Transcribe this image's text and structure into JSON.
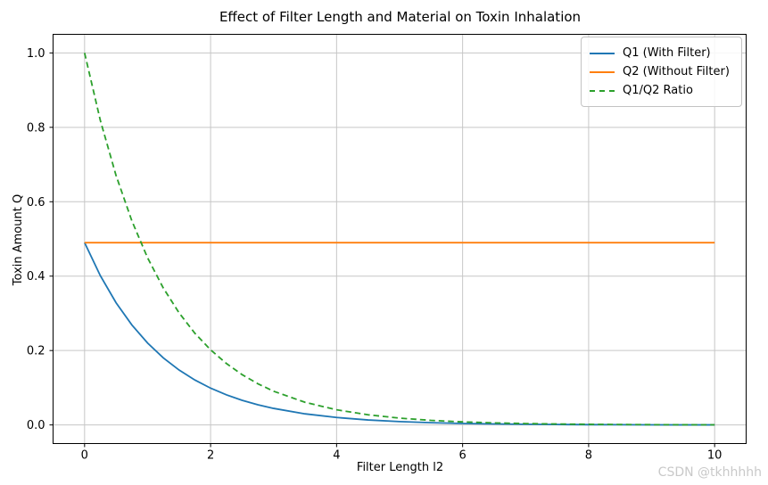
{
  "chart_data": {
    "type": "line",
    "title": "Effect of Filter Length and Material on Toxin Inhalation",
    "xlabel": "Filter Length l2",
    "ylabel": "Toxin Amount Q",
    "xlim": [
      -0.5,
      10.5
    ],
    "ylim": [
      -0.05,
      1.05
    ],
    "grid": true,
    "grid_color": "#c6c6c6",
    "legend_position": "upper right",
    "x_ticks": [
      0,
      2,
      4,
      6,
      8,
      10
    ],
    "x_tick_labels": [
      "0",
      "2",
      "4",
      "6",
      "8",
      "10"
    ],
    "y_ticks": [
      0.0,
      0.2,
      0.4,
      0.6,
      0.8,
      1.0
    ],
    "y_tick_labels": [
      "0.0",
      "0.2",
      "0.4",
      "0.6",
      "0.8",
      "1.0"
    ],
    "x": [
      0,
      0.25,
      0.5,
      0.75,
      1,
      1.25,
      1.5,
      1.75,
      2,
      2.25,
      2.5,
      2.75,
      3,
      3.5,
      4,
      4.5,
      5,
      5.5,
      6,
      6.5,
      7,
      7.5,
      8,
      8.5,
      9,
      9.5,
      10
    ],
    "series": [
      {
        "name": "Q1 (With Filter)",
        "color": "#1f77b4",
        "style": "solid",
        "values": [
          0.49,
          0.4012,
          0.3284,
          0.2689,
          0.2202,
          0.1803,
          0.1476,
          0.1208,
          0.0989,
          0.081,
          0.0663,
          0.0543,
          0.0445,
          0.0298,
          0.02,
          0.0134,
          0.009,
          0.006,
          0.004,
          0.0027,
          0.0018,
          0.0012,
          0.0008,
          0.0006,
          0.0004,
          0.0002,
          0.0002
        ]
      },
      {
        "name": "Q2 (Without Filter)",
        "color": "#ff7f0e",
        "style": "solid",
        "values": [
          0.49,
          0.49,
          0.49,
          0.49,
          0.49,
          0.49,
          0.49,
          0.49,
          0.49,
          0.49,
          0.49,
          0.49,
          0.49,
          0.49,
          0.49,
          0.49,
          0.49,
          0.49,
          0.49,
          0.49,
          0.49,
          0.49,
          0.49,
          0.49,
          0.49,
          0.49,
          0.49
        ]
      },
      {
        "name": "Q1/Q2 Ratio",
        "color": "#2ca02c",
        "style": "dashed",
        "values": [
          1.0,
          0.8187,
          0.6703,
          0.5488,
          0.4493,
          0.3679,
          0.3012,
          0.2466,
          0.2019,
          0.1653,
          0.1353,
          0.1108,
          0.0907,
          0.0608,
          0.0408,
          0.0273,
          0.0183,
          0.0123,
          0.0082,
          0.0055,
          0.0037,
          0.0025,
          0.0017,
          0.0011,
          0.0007,
          0.0005,
          0.0003
        ]
      }
    ]
  },
  "watermark": {
    "text": "CSDN @tkhhhhh",
    "color": "#c9c9c9"
  }
}
